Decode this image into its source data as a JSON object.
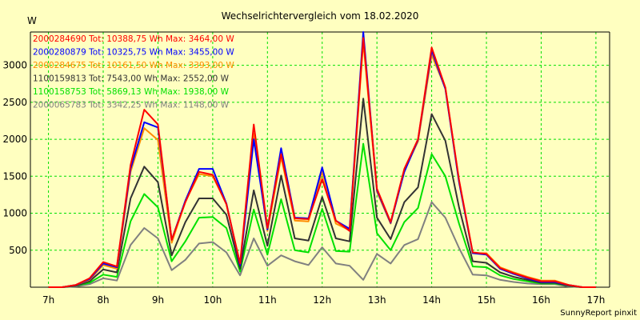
{
  "chart_data": {
    "type": "line",
    "title": "Wechselrichtervergleich vom 18.02.2020",
    "ylabel": "W",
    "footer": "SunnyReport pinxit",
    "xlim": [
      6.67,
      17.25
    ],
    "ylim": [
      0,
      3450
    ],
    "x_ticks": [
      7,
      8,
      9,
      10,
      11,
      12,
      13,
      14,
      15,
      16,
      17
    ],
    "x_tick_labels": [
      "7h",
      "8h",
      "9h",
      "10h",
      "11h",
      "12h",
      "13h",
      "14h",
      "15h",
      "16h",
      "17h"
    ],
    "y_ticks": [
      500,
      1000,
      1500,
      2000,
      2500,
      3000
    ],
    "y_tick_labels": [
      "500",
      "1000",
      "1500",
      "2000",
      "2500",
      "3000"
    ],
    "grid": true,
    "legend_position": "top-left",
    "x": [
      7.0,
      7.25,
      7.5,
      7.75,
      8.0,
      8.25,
      8.5,
      8.75,
      9.0,
      9.25,
      9.5,
      9.75,
      10.0,
      10.25,
      10.5,
      10.75,
      11.0,
      11.25,
      11.5,
      11.75,
      12.0,
      12.25,
      12.5,
      12.75,
      13.0,
      13.25,
      13.5,
      13.75,
      14.0,
      14.25,
      14.5,
      14.75,
      15.0,
      15.25,
      15.5,
      15.75,
      16.0,
      16.25,
      16.5,
      16.75,
      17.0
    ],
    "series": [
      {
        "legend": "2000284690 Tot: 10388,75 Wh Max: 3464,00 W",
        "color": "#ff0000",
        "values": [
          0,
          0,
          30,
          120,
          340,
          280,
          1650,
          2400,
          2200,
          640,
          1150,
          1560,
          1520,
          1120,
          320,
          2200,
          800,
          1800,
          930,
          920,
          1460,
          900,
          760,
          3370,
          1330,
          880,
          1600,
          2000,
          3240,
          2700,
          1450,
          470,
          450,
          260,
          190,
          130,
          80,
          80,
          30,
          0,
          0
        ]
      },
      {
        "legend": "2000280879 Tot: 10325,75 Wh Max: 3455,00 W",
        "color": "#0000ff",
        "values": [
          0,
          0,
          30,
          110,
          320,
          270,
          1600,
          2230,
          2160,
          640,
          1170,
          1600,
          1600,
          1130,
          300,
          2000,
          780,
          1880,
          940,
          930,
          1620,
          900,
          790,
          3450,
          1310,
          870,
          1560,
          1990,
          3200,
          2680,
          1420,
          460,
          440,
          250,
          180,
          120,
          70,
          70,
          30,
          0,
          0
        ]
      },
      {
        "legend": "2000284675 Tot: 10161,50 Wh Max: 3393,00 W",
        "color": "#ff8c00",
        "values": [
          0,
          0,
          30,
          100,
          300,
          250,
          1560,
          2150,
          1990,
          600,
          1160,
          1530,
          1500,
          1130,
          310,
          2080,
          760,
          1760,
          900,
          890,
          1560,
          860,
          770,
          3320,
          1290,
          860,
          1580,
          1970,
          3140,
          2690,
          1440,
          460,
          460,
          270,
          200,
          140,
          90,
          90,
          30,
          0,
          0
        ]
      },
      {
        "legend": "1100159813 Tot: 7543,00 Wh Max: 2552,00 W",
        "color": "#333333",
        "values": [
          0,
          0,
          20,
          80,
          240,
          200,
          1200,
          1630,
          1420,
          430,
          880,
          1200,
          1200,
          980,
          250,
          1310,
          560,
          1510,
          660,
          630,
          1220,
          660,
          620,
          2550,
          940,
          650,
          1150,
          1350,
          2340,
          1980,
          1080,
          350,
          330,
          200,
          140,
          100,
          60,
          60,
          20,
          0,
          0
        ]
      },
      {
        "legend": "1100158753 Tot: 5869,13 Wh Max: 1938,00 W",
        "color": "#00e000",
        "values": [
          0,
          0,
          20,
          60,
          170,
          140,
          890,
          1260,
          1080,
          350,
          620,
          940,
          950,
          800,
          210,
          1050,
          440,
          1190,
          500,
          470,
          1060,
          490,
          480,
          1940,
          730,
          500,
          880,
          1070,
          1800,
          1500,
          860,
          280,
          270,
          160,
          110,
          80,
          50,
          50,
          20,
          0,
          0
        ]
      },
      {
        "legend": "2000065783 Tot: 3342,25 Wh Max: 1148,00 W",
        "color": "#808080",
        "values": [
          0,
          0,
          10,
          40,
          120,
          90,
          570,
          800,
          660,
          230,
          370,
          590,
          610,
          470,
          160,
          660,
          290,
          430,
          350,
          300,
          540,
          320,
          290,
          100,
          450,
          320,
          570,
          650,
          1150,
          940,
          530,
          170,
          160,
          100,
          70,
          50,
          40,
          40,
          10,
          0,
          0
        ]
      }
    ]
  }
}
